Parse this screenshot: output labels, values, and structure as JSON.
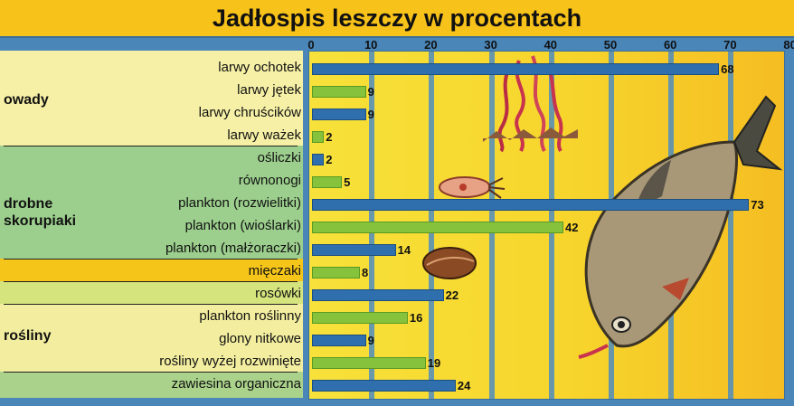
{
  "title": "Jadłospis leszczy w procentach",
  "colors": {
    "owady": "#2f6fae",
    "skorupiaki": "#86c23b",
    "title_bg": "#f7c21a"
  },
  "groups": {
    "owady": "owady",
    "skorupiaki_1": "drobne",
    "skorupiaki_2": "skorupiaki",
    "rosliny": "rośliny"
  },
  "chart_data": {
    "type": "bar",
    "orientation": "horizontal",
    "title": "Jadłospis leszczy w procentach",
    "xlim": [
      0,
      80
    ],
    "x_ticks": [
      "0",
      "10",
      "20",
      "30",
      "40",
      "50",
      "60",
      "70",
      "80"
    ],
    "categories": [
      "larwy ochotek",
      "larwy jętek",
      "larwy chruścików",
      "larwy ważek",
      "ośliczki",
      "równonogi",
      "plankton (rozwielitki)",
      "plankton (wioślarki)",
      "plankton (małżoraczki)",
      "mięczaki",
      "rosówki",
      "plankton roślinny",
      "glony nitkowe",
      "rośliny wyżej rozwinięte",
      "zawiesina organiczna"
    ],
    "values": [
      68,
      9,
      9,
      2,
      2,
      5,
      73,
      42,
      14,
      8,
      22,
      16,
      9,
      19,
      24
    ],
    "value_labels": [
      "68",
      "9",
      "9",
      "2",
      "2",
      "5",
      "73",
      "42",
      "14",
      "8",
      "22",
      "16",
      "9",
      "19",
      "24"
    ],
    "bar_colors": [
      "#2f6fae",
      "#86c23b",
      "#2f6fae",
      "#86c23b",
      "#2f6fae",
      "#86c23b",
      "#2f6fae",
      "#86c23b",
      "#2f6fae",
      "#86c23b",
      "#2f6fae",
      "#86c23b",
      "#2f6fae",
      "#86c23b",
      "#2f6fae"
    ],
    "grid": true
  }
}
